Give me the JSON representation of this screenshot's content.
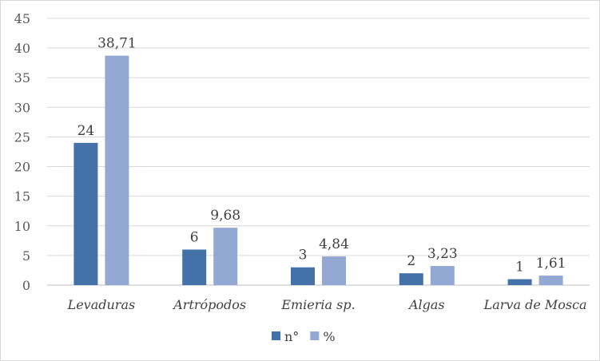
{
  "chart_data": {
    "type": "bar",
    "title": "",
    "xlabel": "",
    "ylabel": "",
    "ylim": [
      0,
      45
    ],
    "yticks": [
      0,
      5,
      10,
      15,
      20,
      25,
      30,
      35,
      40,
      45
    ],
    "grid": true,
    "legend_position": "bottom",
    "categories": [
      "Levaduras",
      "Artrópodos",
      "Emieria sp.",
      "Algas",
      "Larva de Mosca"
    ],
    "series": [
      {
        "name": "n°",
        "values": [
          24,
          6,
          3,
          2,
          1
        ],
        "labels": [
          "24",
          "6",
          "3",
          "2",
          "1"
        ],
        "color": "#4472a8"
      },
      {
        "name": "%",
        "values": [
          38.71,
          9.68,
          4.84,
          3.23,
          1.61
        ],
        "labels": [
          "38,71",
          "9,68",
          "4,84",
          "3,23",
          "1,61"
        ],
        "color": "#93a9d3"
      }
    ]
  }
}
